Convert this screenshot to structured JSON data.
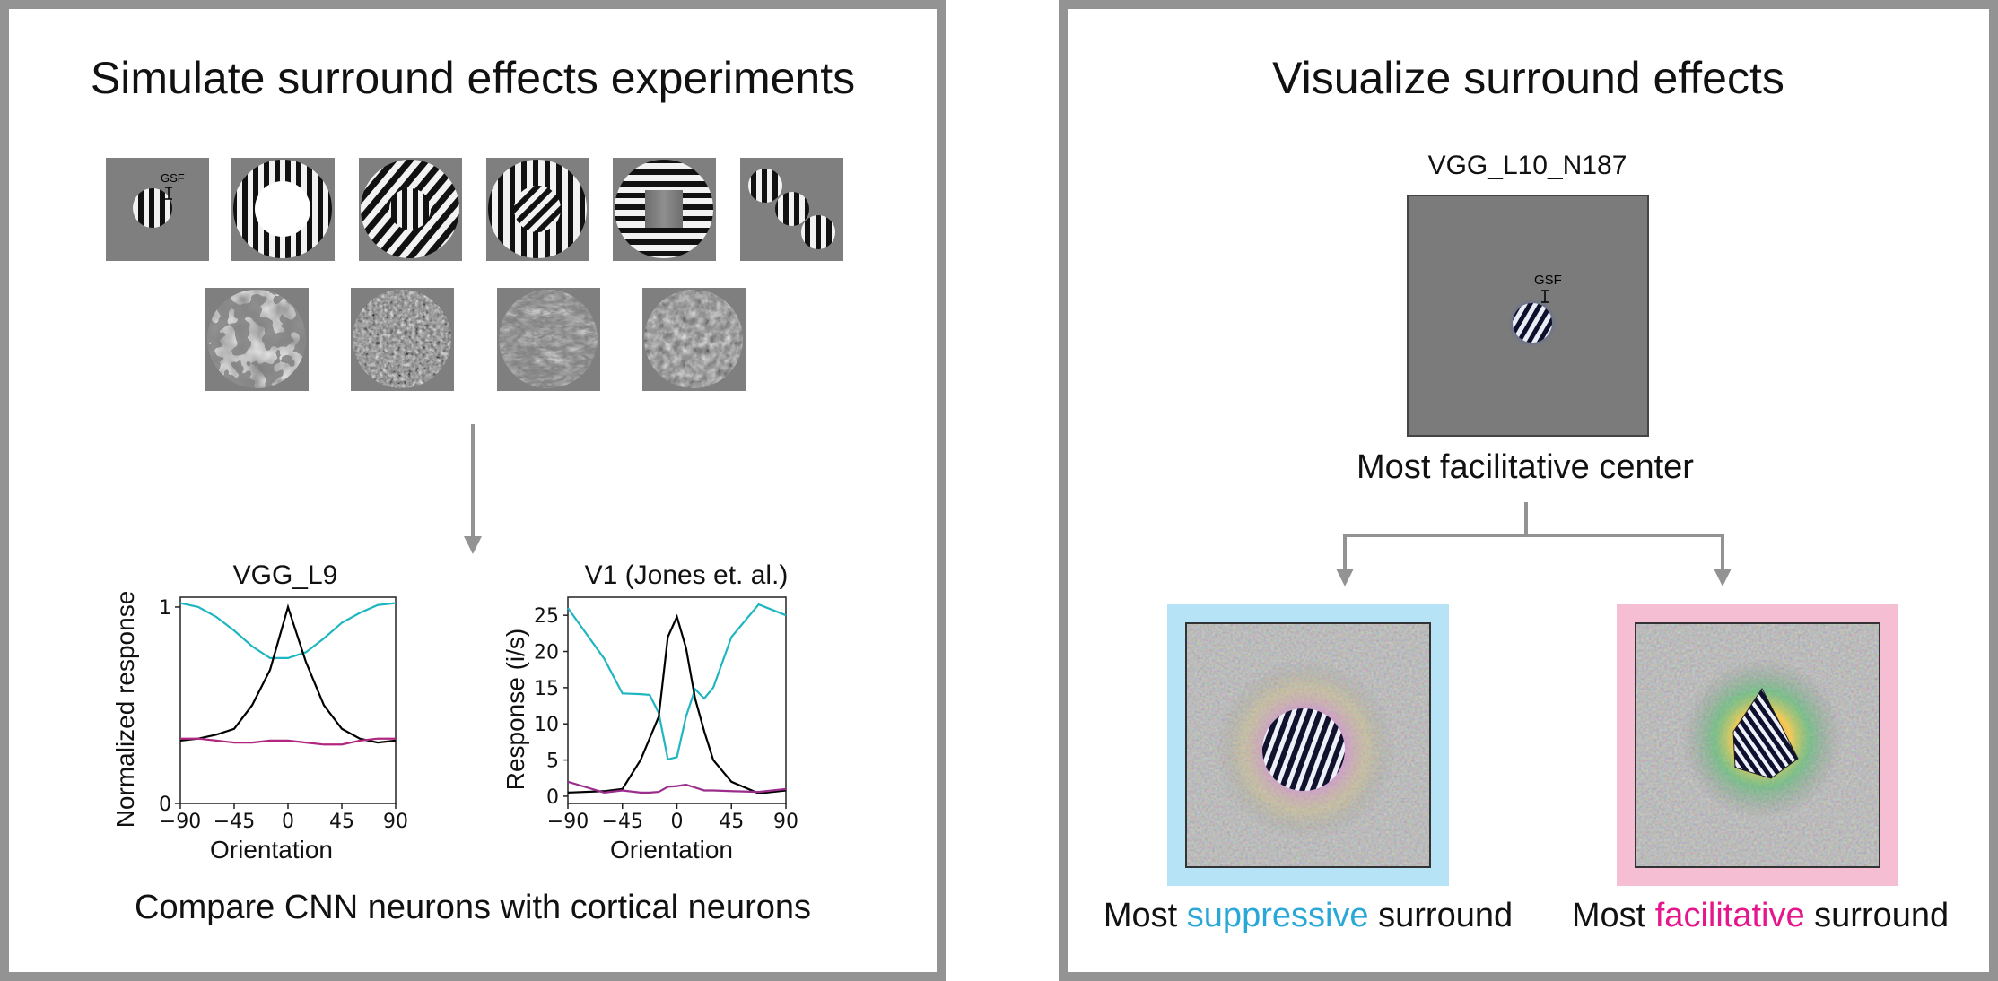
{
  "left": {
    "title": "Simulate surround effects experiments",
    "gsf_label": "GSF",
    "caption": "Compare CNN neurons with cortical neurons",
    "stimuli_row1": [
      "center-grating",
      "annulus",
      "iso-surround",
      "cross-surround",
      "ortho-surround",
      "aligned-patches"
    ],
    "stimuli_row2": [
      "texture-1",
      "texture-2",
      "texture-3",
      "texture-4"
    ]
  },
  "right": {
    "title": "Visualize surround effects",
    "neuron_label": "VGG_L10_N187",
    "gsf_label": "GSF",
    "center_caption": "Most facilitative center",
    "suppressive_caption": {
      "pre": "Most ",
      "highlight": "suppressive",
      "post": " surround"
    },
    "facilitative_caption": {
      "pre": "Most ",
      "highlight": "facilitative",
      "post": " surround"
    },
    "colors": {
      "suppressive": "#29a8d8",
      "facilitative": "#e5168c",
      "suppressive_frame": "#b6e3f5",
      "facilitative_frame": "#f5bed2"
    }
  },
  "chart_data": [
    {
      "type": "line",
      "title": "VGG_L9",
      "xlabel": "Orientation",
      "ylabel": "Normalized response",
      "xlim": [
        -90,
        90
      ],
      "ylim": [
        0,
        1.05
      ],
      "x_ticks": [
        "−90",
        "−45",
        "0",
        "45",
        "90"
      ],
      "y_ticks": [
        "0",
        "1"
      ],
      "x": [
        -90,
        -75,
        -60,
        -45,
        -30,
        -15,
        0,
        15,
        30,
        45,
        60,
        75,
        90
      ],
      "series": [
        {
          "color": "#1fb6c1",
          "values": [
            1.02,
            1.0,
            0.95,
            0.88,
            0.8,
            0.74,
            0.74,
            0.77,
            0.84,
            0.92,
            0.97,
            1.01,
            1.02
          ]
        },
        {
          "color": "#000000",
          "values": [
            0.32,
            0.33,
            0.35,
            0.38,
            0.5,
            0.68,
            1.0,
            0.72,
            0.5,
            0.38,
            0.33,
            0.31,
            0.32
          ]
        },
        {
          "color": "#b0277f",
          "values": [
            0.33,
            0.33,
            0.32,
            0.31,
            0.31,
            0.32,
            0.32,
            0.31,
            0.3,
            0.3,
            0.32,
            0.33,
            0.33
          ]
        }
      ]
    },
    {
      "type": "line",
      "title": "V1 (Jones et. al.)",
      "xlabel": "Orientation",
      "ylabel": "Response (i/s)",
      "xlim": [
        -90,
        90
      ],
      "ylim": [
        -1,
        27.5
      ],
      "x_ticks": [
        "−90",
        "−45",
        "0",
        "45",
        "90"
      ],
      "y_ticks": [
        "0",
        "5",
        "10",
        "15",
        "20",
        "25"
      ],
      "x": [
        -90,
        -60,
        -45,
        -30,
        -22.5,
        -15,
        -7.5,
        0,
        7.5,
        15,
        22.5,
        30,
        45,
        67.5,
        90
      ],
      "series": [
        {
          "color": "#1fb6c1",
          "values": [
            26,
            19,
            14.2,
            14.1,
            14.0,
            11.5,
            5.1,
            5.4,
            11.0,
            14.8,
            13.5,
            15,
            22,
            26.5,
            25
          ]
        },
        {
          "color": "#000000",
          "values": [
            0.5,
            0.7,
            1.0,
            5.0,
            8.0,
            11.0,
            22.0,
            24.8,
            20.5,
            13.5,
            9.0,
            5.0,
            2.0,
            0.4,
            0.8
          ]
        },
        {
          "color": "#9b2d8c",
          "values": [
            2.0,
            0.5,
            0.8,
            0.5,
            0.5,
            0.6,
            1.3,
            1.4,
            1.6,
            1.2,
            0.8,
            0.8,
            0.7,
            0.6,
            1.0
          ]
        }
      ]
    }
  ]
}
